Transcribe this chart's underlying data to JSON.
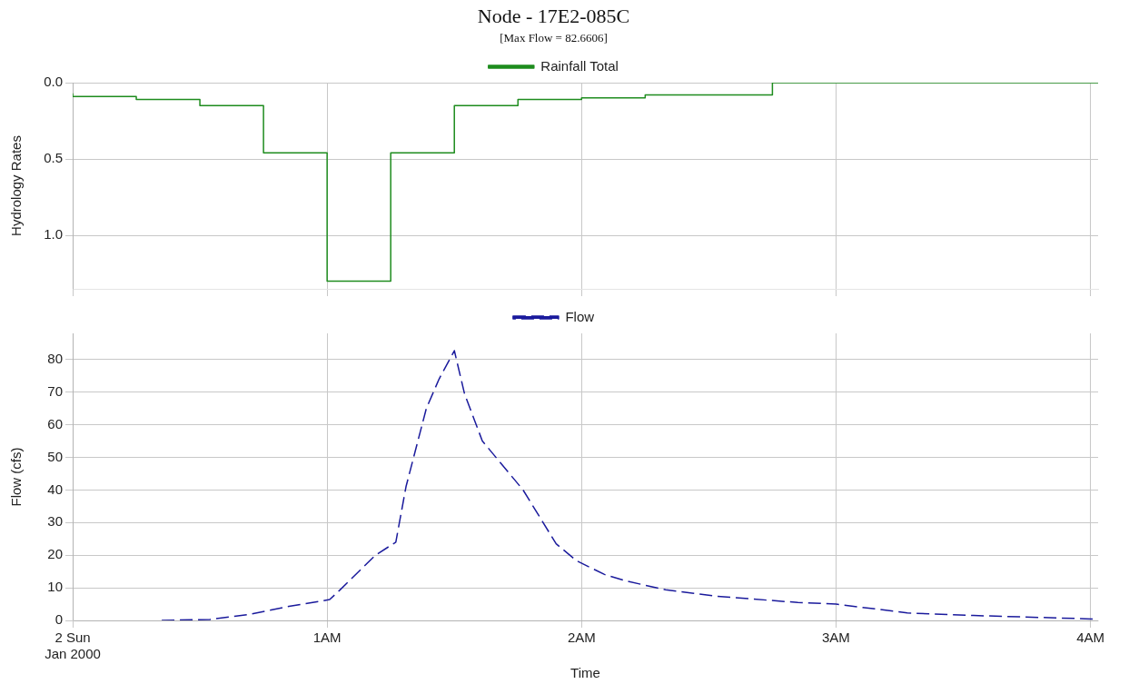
{
  "chart_data": [
    {
      "type": "step",
      "title": "Node - 17E2-085C",
      "subtitle": "[Max Flow = 82.6606]",
      "ylabel": "Hydrology Rates",
      "xlim": [
        0,
        4.03
      ],
      "xticks": [
        0,
        1,
        2,
        3,
        4
      ],
      "tick_labels": "y",
      "ylim": [
        1.35,
        0
      ],
      "yticks": [
        {
          "value": 0,
          "label": "0.0"
        },
        {
          "value": 0.5,
          "label": "0.5"
        },
        {
          "value": 1,
          "label": "1.0"
        }
      ],
      "grid": true,
      "legend": "top",
      "marker": "none",
      "series": [
        {
          "name": "Rainfall Total",
          "color": "#1e8c1e",
          "line_style": "solid",
          "x": [
            0,
            0.25,
            0.5,
            0.75,
            1,
            1.25,
            1.5,
            1.75,
            2,
            2.25,
            2.5,
            2.75,
            3,
            4.03
          ],
          "values": [
            0.07,
            0.09,
            0.11,
            0.15,
            0.46,
            1.3,
            0.46,
            0.15,
            0.11,
            0.1,
            0.08,
            0.08,
            0,
            0
          ]
        }
      ]
    },
    {
      "type": "line",
      "xlabel": "Time",
      "ylabel": "Flow (cfs)",
      "xlim": [
        0,
        4.03
      ],
      "xticks": [
        {
          "value": 0,
          "label": "2 Sun\nJan 2000"
        },
        {
          "value": 1,
          "label": "1AM"
        },
        {
          "value": 2,
          "label": "2AM"
        },
        {
          "value": 3,
          "label": "3AM"
        },
        {
          "value": 4,
          "label": "4AM"
        }
      ],
      "ylim": [
        0,
        88
      ],
      "yticks": [
        0,
        10,
        20,
        30,
        40,
        50,
        60,
        70,
        80
      ],
      "grid": true,
      "legend": "top",
      "marker": "none",
      "series": [
        {
          "name": "Flow",
          "color": "#1a1a9c",
          "line_style": "dashed",
          "x": [
            0.35,
            0.54,
            0.69,
            0.85,
            1.01,
            1.05,
            1.19,
            1.27,
            1.31,
            1.39,
            1.44,
            1.5,
            1.54,
            1.61,
            1.77,
            1.9,
            1.98,
            2.09,
            2.18,
            2.33,
            2.53,
            2.85,
            3,
            3.28,
            3.54,
            3.98,
            4.03
          ],
          "values": [
            0,
            0.3,
            1.8,
            4.3,
            6.4,
            9.3,
            20,
            24,
            41,
            65,
            74,
            82.7,
            69.5,
            55,
            40,
            23.5,
            18.3,
            14.1,
            12,
            9.4,
            7.4,
            5.5,
            5,
            2.3,
            1.5,
            0.5,
            0.3
          ]
        }
      ]
    }
  ]
}
